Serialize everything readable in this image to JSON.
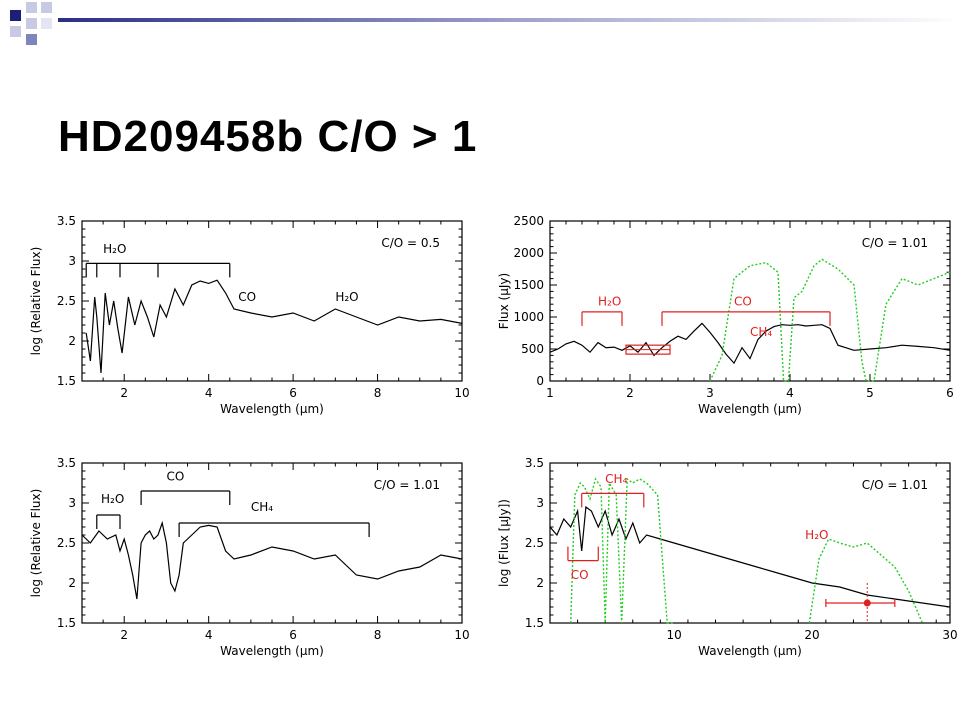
{
  "slide": {
    "title": "HD209458b C/O > 1"
  },
  "colors": {
    "model": "#000000",
    "highlight": "#e02020",
    "filter": "#22cc22"
  },
  "chart_data": [
    {
      "type": "line",
      "panel": "top-left",
      "xlabel": "Wavelength (μm)",
      "ylabel": "log (Relative Flux)",
      "xlim": [
        1,
        10
      ],
      "ylim": [
        1.5,
        3.5
      ],
      "xticks": [
        2,
        4,
        6,
        8,
        10
      ],
      "yticks": [
        1.5,
        2,
        2.5,
        3,
        3.5
      ],
      "annotation": "C/O = 0.5",
      "bands": [
        {
          "label": "H₂O",
          "x1": 1.1,
          "x2": 4.5,
          "bar_y": 2.97,
          "ticks": [
            1.1,
            1.35,
            1.9,
            2.8,
            4.5
          ],
          "label_x": 1.5,
          "label_y": 3.1
        },
        {
          "label": "CO",
          "label_x": 4.7,
          "label_y": 2.5
        },
        {
          "label": "H₂O",
          "label_x": 7.0,
          "label_y": 2.5
        }
      ],
      "series": [
        {
          "color": "#000000",
          "x": [
            1.1,
            1.2,
            1.3,
            1.35,
            1.45,
            1.55,
            1.65,
            1.75,
            1.85,
            1.95,
            2.1,
            2.25,
            2.4,
            2.55,
            2.7,
            2.85,
            3.0,
            3.2,
            3.4,
            3.6,
            3.8,
            4.0,
            4.2,
            4.4,
            4.6,
            5.0,
            5.5,
            6.0,
            6.5,
            7.0,
            7.5,
            8.0,
            8.5,
            9.0,
            9.5,
            10.0
          ],
          "y": [
            2.1,
            1.75,
            2.55,
            2.3,
            1.6,
            2.6,
            2.2,
            2.5,
            2.15,
            1.85,
            2.55,
            2.2,
            2.5,
            2.3,
            2.05,
            2.45,
            2.3,
            2.65,
            2.45,
            2.7,
            2.75,
            2.72,
            2.76,
            2.6,
            2.4,
            2.35,
            2.3,
            2.35,
            2.25,
            2.4,
            2.3,
            2.2,
            2.3,
            2.25,
            2.27,
            2.22
          ]
        }
      ]
    },
    {
      "type": "line",
      "panel": "top-right",
      "xlabel": "Wavelength (μm)",
      "ylabel": "Flux (μJy)",
      "xlim": [
        1,
        6
      ],
      "ylim": [
        0,
        2500
      ],
      "xticks": [
        1,
        2,
        3,
        4,
        5,
        6
      ],
      "yticks": [
        0,
        500,
        1000,
        1500,
        2000,
        2500
      ],
      "annotation": "C/O = 1.01",
      "bands": [
        {
          "label": "H₂O",
          "x1": 1.4,
          "x2": 1.9,
          "bar_y": 1080,
          "label_x": 1.6,
          "label_y": 1180,
          "color": "#e02020"
        },
        {
          "label": "CO",
          "x1": 2.4,
          "x2": 4.5,
          "bar_y": 1080,
          "label_x": 3.3,
          "label_y": 1180,
          "color": "#e02020"
        },
        {
          "label": "CH₄",
          "label_x": 3.5,
          "label_y": 700,
          "color": "#e02020"
        }
      ],
      "observation": {
        "x": [
          1.95,
          2.5
        ],
        "y": [
          560,
          420
        ],
        "color": "#e02020"
      },
      "series": [
        {
          "color": "#000000",
          "x": [
            1.0,
            1.1,
            1.2,
            1.3,
            1.4,
            1.5,
            1.6,
            1.7,
            1.8,
            1.9,
            2.0,
            2.1,
            2.2,
            2.3,
            2.4,
            2.5,
            2.6,
            2.7,
            2.8,
            2.9,
            3.0,
            3.1,
            3.2,
            3.3,
            3.4,
            3.5,
            3.6,
            3.7,
            3.8,
            3.9,
            4.0,
            4.1,
            4.2,
            4.3,
            4.4,
            4.5,
            4.6,
            4.8,
            5.0,
            5.2,
            5.4,
            5.6,
            5.8,
            6.0
          ],
          "y": [
            450,
            500,
            580,
            620,
            560,
            450,
            600,
            520,
            530,
            480,
            550,
            450,
            600,
            400,
            520,
            620,
            700,
            650,
            780,
            900,
            760,
            600,
            420,
            280,
            520,
            350,
            650,
            780,
            850,
            880,
            870,
            880,
            860,
            870,
            880,
            820,
            560,
            480,
            500,
            520,
            560,
            540,
            520,
            480
          ]
        },
        {
          "color": "#22cc22",
          "dashed": true,
          "x": [
            3.0,
            3.15,
            3.3,
            3.5,
            3.7,
            3.85,
            3.92,
            3.98,
            4.05,
            4.15,
            4.3,
            4.4,
            4.6,
            4.8,
            4.9,
            4.95,
            5.05,
            5.2,
            5.4,
            5.6,
            5.8,
            6.0
          ],
          "y": [
            0,
            400,
            1600,
            1800,
            1850,
            1700,
            0,
            0,
            1300,
            1400,
            1800,
            1900,
            1750,
            1500,
            300,
            0,
            0,
            1200,
            1600,
            1500,
            1600,
            1700
          ]
        }
      ]
    },
    {
      "type": "line",
      "panel": "bottom-left",
      "xlabel": "Wavelength (μm)",
      "ylabel": "log (Relative Flux)",
      "xlim": [
        1,
        10
      ],
      "ylim": [
        1.5,
        3.5
      ],
      "xticks": [
        2,
        4,
        6,
        8,
        10
      ],
      "yticks": [
        1.5,
        2,
        2.5,
        3,
        3.5
      ],
      "annotation": "C/O = 1.01",
      "bands": [
        {
          "label": "H₂O",
          "x1": 1.35,
          "x2": 1.9,
          "bar_y": 2.85,
          "ticks": [
            1.35,
            1.9
          ],
          "label_x": 1.45,
          "label_y": 3.0
        },
        {
          "label": "CO",
          "x1": 2.4,
          "x2": 4.5,
          "bar_y": 3.15,
          "ticks": [
            2.4,
            4.5
          ],
          "label_x": 3.0,
          "label_y": 3.28
        },
        {
          "label": "CH₄",
          "x1": 3.3,
          "x2": 7.8,
          "bar_y": 2.75,
          "ticks": [
            3.3,
            7.8
          ],
          "label_x": 5.0,
          "label_y": 2.9
        }
      ],
      "series": [
        {
          "color": "#000000",
          "x": [
            1.0,
            1.2,
            1.4,
            1.6,
            1.8,
            1.9,
            2.0,
            2.1,
            2.2,
            2.3,
            2.4,
            2.5,
            2.6,
            2.7,
            2.8,
            2.9,
            3.0,
            3.1,
            3.2,
            3.3,
            3.4,
            3.6,
            3.8,
            4.0,
            4.2,
            4.4,
            4.6,
            5.0,
            5.5,
            6.0,
            6.5,
            7.0,
            7.5,
            8.0,
            8.5,
            9.0,
            9.5,
            10.0
          ],
          "y": [
            2.6,
            2.5,
            2.65,
            2.55,
            2.6,
            2.4,
            2.55,
            2.35,
            2.1,
            1.8,
            2.5,
            2.6,
            2.65,
            2.55,
            2.6,
            2.75,
            2.5,
            2.0,
            1.9,
            2.1,
            2.5,
            2.6,
            2.7,
            2.72,
            2.7,
            2.4,
            2.3,
            2.35,
            2.45,
            2.4,
            2.3,
            2.35,
            2.1,
            2.05,
            2.15,
            2.2,
            2.35,
            2.3
          ]
        }
      ]
    },
    {
      "type": "line",
      "panel": "bottom-right",
      "xlabel": "Wavelength (μm)",
      "ylabel": "log (Flux [μJy])",
      "xlim": [
        1,
        30
      ],
      "ylim": [
        1.5,
        3.5
      ],
      "xticks": [
        10,
        20,
        30
      ],
      "yticks": [
        1.5,
        2,
        2.5,
        3,
        3.5
      ],
      "annotation": "C/O = 1.01",
      "bands": [
        {
          "label": "CH₄",
          "x1": 3.3,
          "x2": 7.8,
          "bar_y": 3.12,
          "label_x": 5.0,
          "label_y": 3.25,
          "color": "#e02020"
        },
        {
          "label": "CO",
          "x1": 2.3,
          "x2": 4.5,
          "bar_y": 2.28,
          "label_x": 2.5,
          "label_y": 2.05,
          "color": "#e02020",
          "hook": "down"
        },
        {
          "label": "H₂O",
          "label_x": 19.5,
          "label_y": 2.55,
          "color": "#e02020"
        }
      ],
      "observation": {
        "x": 24.0,
        "y": 1.75,
        "xerr": [
          21.0,
          26.0
        ],
        "color": "#e02020"
      },
      "series": [
        {
          "color": "#000000",
          "x": [
            1.0,
            1.5,
            2.0,
            2.5,
            3.0,
            3.3,
            3.6,
            4.0,
            4.5,
            5.0,
            5.5,
            6.0,
            6.5,
            7.0,
            7.5,
            8.0,
            9.0,
            10,
            12,
            14,
            16,
            18,
            20,
            22,
            24,
            26,
            28,
            30
          ],
          "y": [
            2.7,
            2.6,
            2.8,
            2.7,
            2.9,
            2.4,
            2.95,
            2.9,
            2.7,
            2.9,
            2.6,
            2.8,
            2.55,
            2.75,
            2.5,
            2.6,
            2.55,
            2.5,
            2.4,
            2.3,
            2.2,
            2.1,
            2.0,
            1.95,
            1.85,
            1.8,
            1.75,
            1.7
          ]
        },
        {
          "color": "#22cc22",
          "dashed": true,
          "x": [
            2.5,
            2.8,
            3.2,
            3.5,
            3.9,
            4.3,
            4.7,
            5.0,
            5.3,
            5.8,
            6.2,
            6.6,
            7.0,
            7.5,
            8.0,
            8.8,
            9.5,
            10.0
          ],
          "y": [
            1.5,
            3.1,
            3.25,
            3.2,
            3.05,
            3.3,
            3.2,
            1.5,
            3.25,
            3.1,
            1.5,
            3.3,
            3.25,
            3.3,
            3.25,
            3.1,
            1.5,
            1.5
          ]
        },
        {
          "color": "#22cc22",
          "dashed": true,
          "x": [
            19.8,
            20.5,
            21.2,
            22.0,
            23.0,
            24.0,
            25.0,
            26.0,
            27.0,
            28.0
          ],
          "y": [
            1.5,
            2.3,
            2.55,
            2.5,
            2.45,
            2.5,
            2.35,
            2.2,
            1.9,
            1.5
          ]
        }
      ]
    }
  ]
}
